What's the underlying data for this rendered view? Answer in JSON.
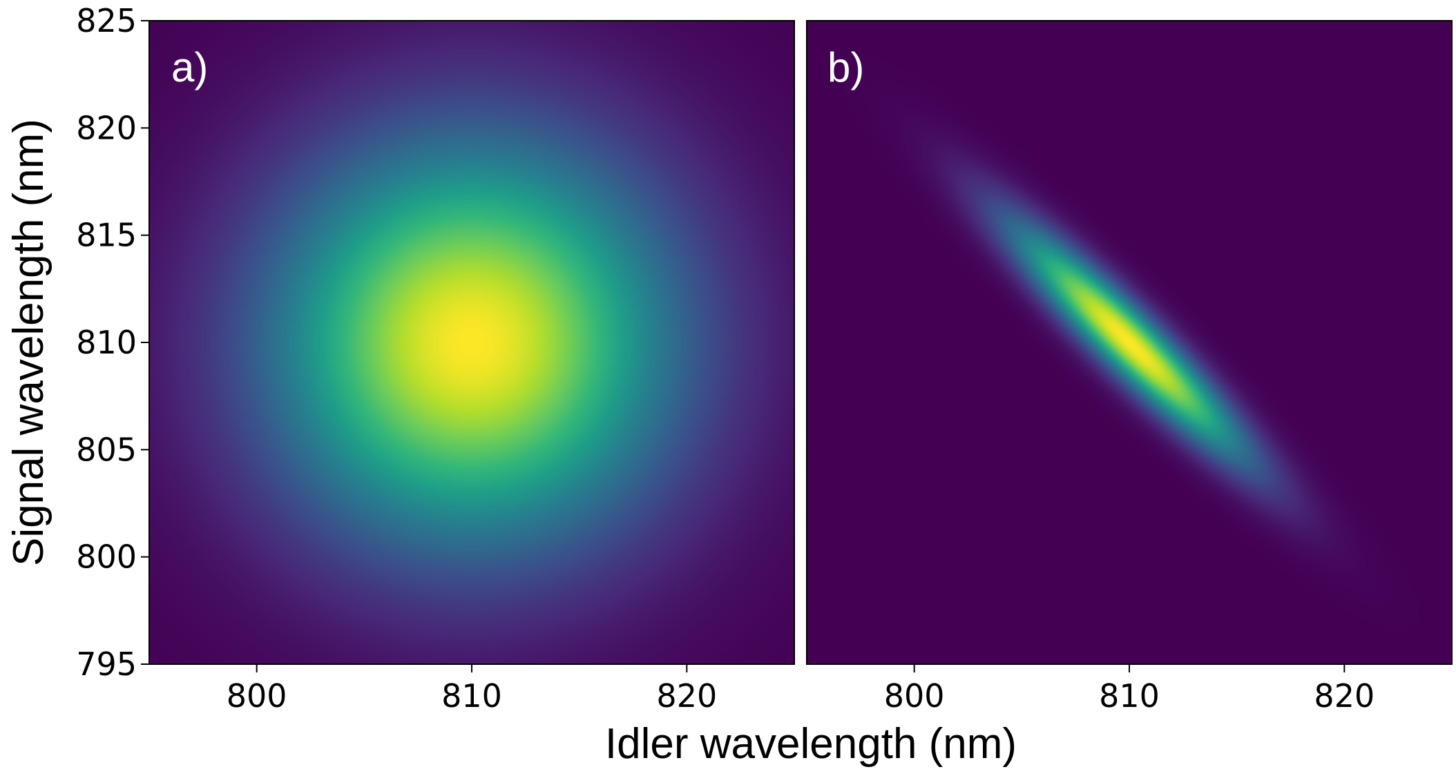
{
  "figure": {
    "xlabel": "Idler wavelength (nm)",
    "ylabel": "Signal wavelength (nm)"
  },
  "chart_data": [
    {
      "type": "heatmap",
      "panel_label": "a)",
      "colormap": "viridis",
      "xlabel": "Idler wavelength (nm)",
      "ylabel": "Signal wavelength (nm)",
      "xlim": [
        795,
        825
      ],
      "ylim": [
        795,
        825
      ],
      "xticks": [
        "800",
        "810",
        "820"
      ],
      "yticks": [
        "795",
        "800",
        "805",
        "810",
        "815",
        "820",
        "825"
      ],
      "distribution": {
        "shape": "2D gaussian",
        "center": [
          810,
          810
        ],
        "sigma_major": 6.5,
        "sigma_minor": 6.5,
        "correlation": 0.0,
        "peak_value": 1.0
      },
      "grid": false
    },
    {
      "type": "heatmap",
      "panel_label": "b)",
      "colormap": "viridis",
      "xlabel": "Idler wavelength (nm)",
      "ylabel": "",
      "xlim": [
        795,
        825
      ],
      "ylim": [
        795,
        825
      ],
      "xticks": [
        "800",
        "810",
        "820"
      ],
      "yticks": [],
      "distribution": {
        "shape": "2D gaussian",
        "center": [
          810,
          810
        ],
        "sigma_major": 5.2,
        "sigma_minor": 0.95,
        "major_axis": "anti-diagonal",
        "correlation": -0.94,
        "peak_value": 1.0
      },
      "grid": false
    }
  ]
}
